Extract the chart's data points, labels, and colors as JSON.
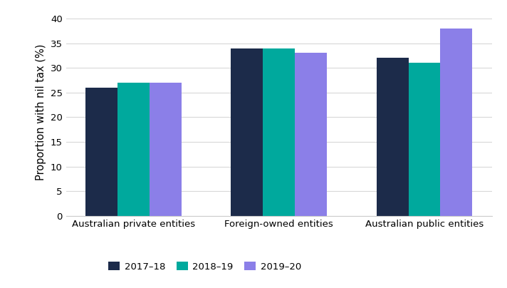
{
  "categories": [
    "Australian private entities",
    "Foreign-owned entities",
    "Australian public entities"
  ],
  "series": {
    "2017–18": [
      26,
      34,
      32
    ],
    "2018–19": [
      27,
      34,
      31
    ],
    "2019–20": [
      27,
      33,
      38
    ]
  },
  "series_order": [
    "2017–18",
    "2018–19",
    "2019–20"
  ],
  "colors": {
    "2017–18": "#1c2b4a",
    "2018–19": "#00a99d",
    "2019–20": "#8b7fe8"
  },
  "ylabel": "Proportion with nil tax (%)",
  "ylim": [
    0,
    42
  ],
  "yticks": [
    0,
    5,
    10,
    15,
    20,
    25,
    30,
    35,
    40
  ],
  "bar_width": 0.22,
  "background_color": "#ffffff",
  "grid_color": "#d8d8d8",
  "tick_label_fontsize": 9.5,
  "axis_label_fontsize": 10.5,
  "legend_fontsize": 9.5
}
